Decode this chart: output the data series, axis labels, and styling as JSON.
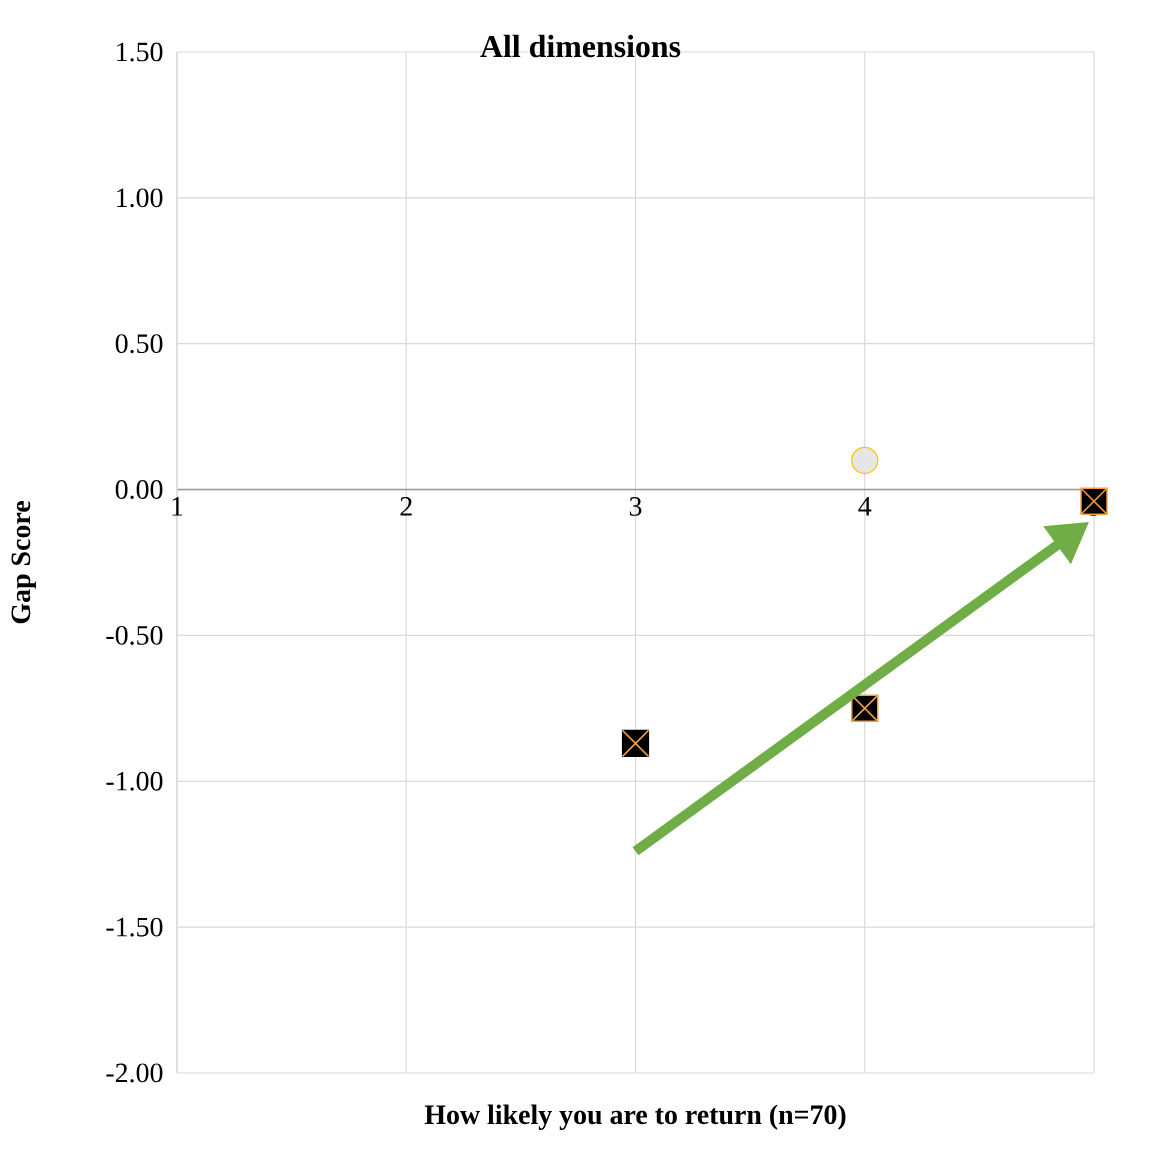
{
  "chart_data": {
    "type": "scatter",
    "title": "All dimensions",
    "xlabel": "How likely you are to return (n=70)",
    "ylabel": "Gap Score",
    "series": [
      {
        "x": [
          3,
          4,
          5
        ],
        "values": [
          -0.87,
          -0.75,
          -0.04
        ],
        "color": "#000000",
        "marker": "square"
      },
      {
        "x": [
          4
        ],
        "values": [
          0.1
        ],
        "color": "#e7e6e6",
        "marker": "circle"
      }
    ],
    "xlim": [
      1,
      5
    ],
    "xticks": [
      1,
      2,
      3,
      4,
      5
    ],
    "ylim": [
      -2,
      1.5
    ],
    "yticks": [
      {
        "value": -2,
        "label": "-2.00"
      },
      {
        "value": -1.5,
        "label": "-1.50"
      },
      {
        "value": -1,
        "label": "-1.00"
      },
      {
        "value": -0.5,
        "label": "-0.50"
      },
      {
        "value": 0,
        "label": "0.00"
      },
      {
        "value": 0.5,
        "label": "0.50"
      },
      {
        "value": 1,
        "label": "1.00"
      },
      {
        "value": 1.5,
        "label": "1.50"
      }
    ],
    "grid": true
  }
}
